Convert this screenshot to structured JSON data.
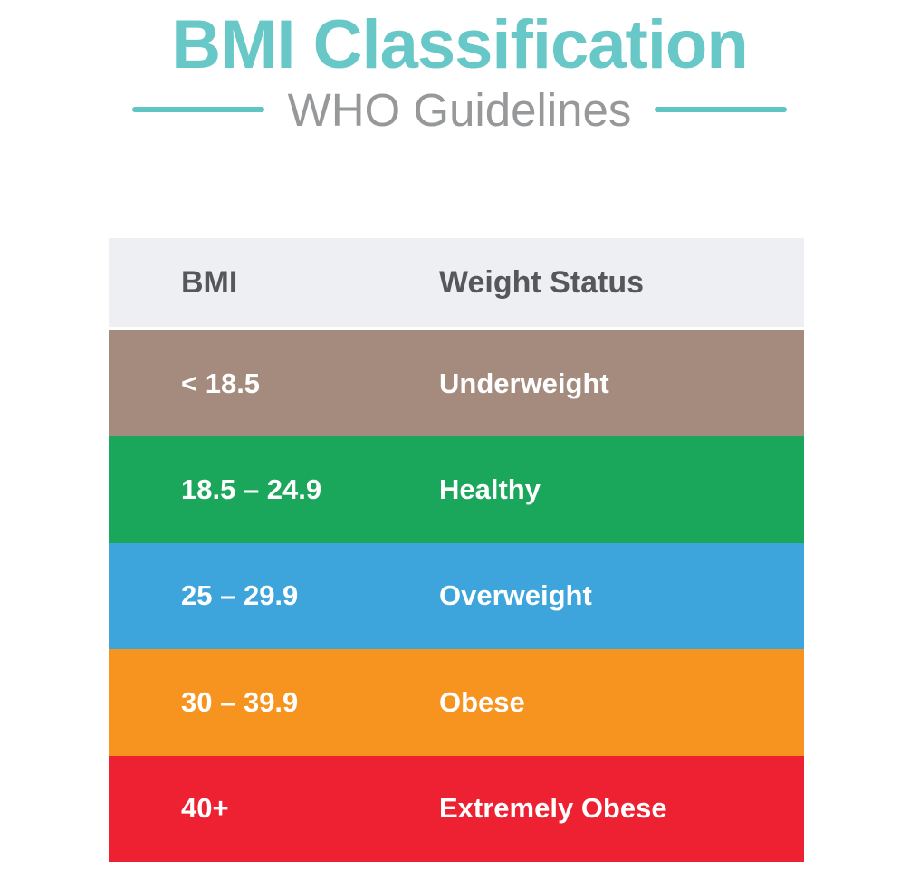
{
  "title": "BMI Classification",
  "subtitle": "WHO Guidelines",
  "colors": {
    "accent_teal": "#68c7c7",
    "subtitle_gray": "#96989a",
    "header_bg": "#edeff2",
    "header_text": "#55575a",
    "row_text": "#ffffff"
  },
  "table": {
    "headers": {
      "bmi": "BMI",
      "status": "Weight Status"
    },
    "rows": [
      {
        "bmi": "< 18.5",
        "status": "Underweight",
        "color": "#a48b7e"
      },
      {
        "bmi": "18.5 – 24.9",
        "status": "Healthy",
        "color": "#1aa65b"
      },
      {
        "bmi": "25 – 29.9",
        "status": "Overweight",
        "color": "#3ea4dc"
      },
      {
        "bmi": "30 – 39.9",
        "status": "Obese",
        "color": "#f7941f"
      },
      {
        "bmi": "40+",
        "status": "Extremely Obese",
        "color": "#ee2132"
      }
    ]
  },
  "chart_data": {
    "type": "table",
    "title": "BMI Classification",
    "subtitle": "WHO Guidelines",
    "columns": [
      "BMI",
      "Weight Status"
    ],
    "rows": [
      [
        "< 18.5",
        "Underweight"
      ],
      [
        "18.5 – 24.9",
        "Healthy"
      ],
      [
        "25 – 29.9",
        "Overweight"
      ],
      [
        "30 – 39.9",
        "Obese"
      ],
      [
        "40+",
        "Extremely Obese"
      ]
    ],
    "row_colors": [
      "#a48b7e",
      "#1aa65b",
      "#3ea4dc",
      "#f7941f",
      "#ee2132"
    ],
    "legend_position": "none",
    "grid": false
  }
}
